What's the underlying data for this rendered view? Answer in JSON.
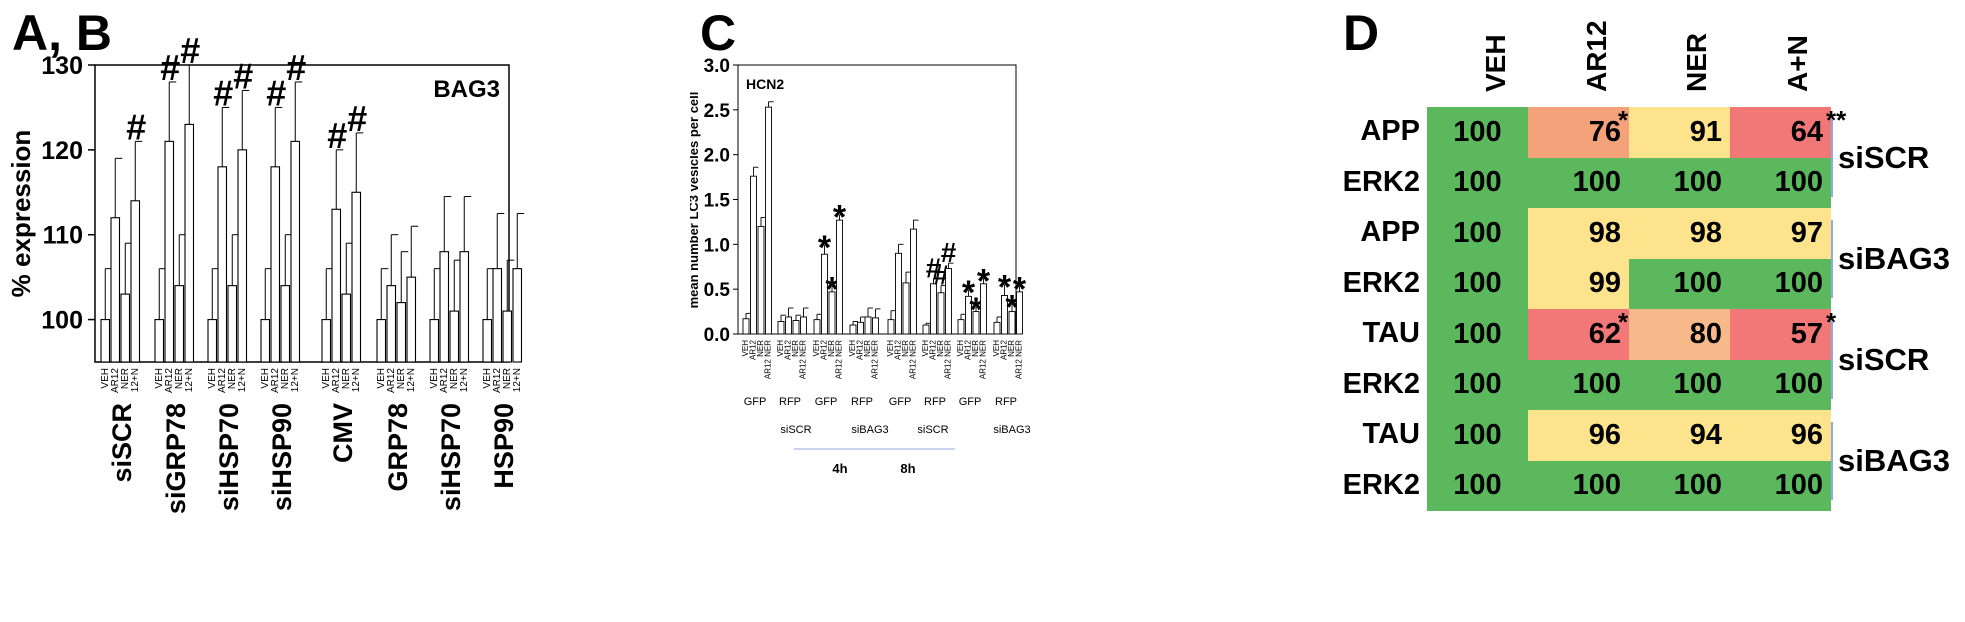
{
  "labels": {
    "panel_ab": "A, B",
    "panel_c": "C",
    "panel_d": "D"
  },
  "chart_data": [
    {
      "id": "A_B",
      "type": "bar",
      "annotation": "BAG3",
      "ylabel": "% expression",
      "ylim": [
        95,
        130
      ],
      "yticks": [
        100,
        110,
        120,
        130
      ],
      "bar_labels": [
        "VEH",
        "AR12",
        "NER",
        "12+N"
      ],
      "groups": [
        {
          "name": "siSCR",
          "values": [
            100,
            112,
            103,
            114
          ],
          "errors": [
            6,
            7,
            6,
            7
          ],
          "marks": [
            "",
            "",
            "",
            "#"
          ]
        },
        {
          "name": "siGRP78",
          "values": [
            100,
            121,
            104,
            123
          ],
          "errors": [
            6,
            7,
            6,
            7
          ],
          "marks": [
            "",
            "#",
            "",
            "#"
          ]
        },
        {
          "name": "siHSP70",
          "values": [
            100,
            118,
            104,
            120
          ],
          "errors": [
            6,
            7,
            6,
            7
          ],
          "marks": [
            "",
            "#",
            "",
            "#"
          ]
        },
        {
          "name": "siHSP90",
          "values": [
            100,
            118,
            104,
            121
          ],
          "errors": [
            6,
            7,
            6,
            7
          ],
          "marks": [
            "",
            "#",
            "",
            "#"
          ]
        },
        {
          "name": "CMV",
          "values": [
            100,
            113,
            103,
            115
          ],
          "errors": [
            6,
            7,
            6,
            7
          ],
          "marks": [
            "",
            "#",
            "",
            "#"
          ]
        },
        {
          "name": "GRP78",
          "values": [
            100,
            104,
            102,
            105
          ],
          "errors": [
            6,
            6,
            6,
            6
          ],
          "marks": [
            "",
            "",
            "",
            ""
          ]
        },
        {
          "name": "siHSP70",
          "values": [
            100,
            108,
            101,
            108
          ],
          "errors": [
            6,
            6.5,
            6,
            6.5
          ],
          "marks": [
            "",
            "",
            "",
            ""
          ]
        },
        {
          "name": "HSP90",
          "values": [
            100,
            106,
            101,
            106
          ],
          "errors": [
            6,
            6.5,
            6,
            6.5
          ],
          "marks": [
            "",
            "",
            "",
            ""
          ]
        }
      ]
    },
    {
      "id": "C",
      "type": "bar",
      "annotation": "HCN2",
      "ylabel": "mean number LC3 vesicles per cell",
      "ylim": [
        0,
        3.0
      ],
      "yticks": [
        "0.0",
        "0.5",
        "1.0",
        "1.5",
        "2.0",
        "2.5",
        "3.0"
      ],
      "bar_labels": [
        "VEH",
        "AR12",
        "NER",
        "AR12 NER"
      ],
      "groups": [
        {
          "name": "GFP",
          "values": [
            0.17,
            1.76,
            1.2,
            2.53
          ],
          "errors": [
            0.06,
            0.1,
            0.1,
            0.06
          ],
          "marks": [
            "",
            "",
            "",
            ""
          ]
        },
        {
          "name": "RFP",
          "values": [
            0.14,
            0.19,
            0.15,
            0.19
          ],
          "errors": [
            0.07,
            0.1,
            0.06,
            0.1
          ],
          "marks": [
            "",
            "",
            "",
            ""
          ]
        },
        {
          "name": "GFP",
          "values": [
            0.16,
            0.89,
            0.47,
            1.27
          ],
          "errors": [
            0.06,
            0.1,
            0.06,
            0.06
          ],
          "marks": [
            "",
            "*",
            "*",
            "*"
          ]
        },
        {
          "name": "RFP",
          "values": [
            0.1,
            0.13,
            0.19,
            0.18
          ],
          "errors": [
            0.04,
            0.06,
            0.1,
            0.1
          ],
          "marks": [
            "",
            "",
            "",
            ""
          ]
        },
        {
          "name": "GFP",
          "values": [
            0.16,
            0.9,
            0.57,
            1.17
          ],
          "errors": [
            0.1,
            0.1,
            0.12,
            0.1
          ],
          "marks": [
            "",
            "",
            "",
            ""
          ]
        },
        {
          "name": "RFP",
          "values": [
            0.1,
            0.56,
            0.46,
            0.73
          ],
          "errors": [
            0.02,
            0.06,
            0.08,
            0.06
          ],
          "marks": [
            "",
            "#",
            "#",
            "#"
          ]
        },
        {
          "name": "GFP",
          "values": [
            0.16,
            0.42,
            0.25,
            0.56
          ],
          "errors": [
            0.06,
            0.07,
            0.05,
            0.06
          ],
          "marks": [
            "",
            "*",
            "*",
            "*"
          ]
        },
        {
          "name": "RFP",
          "values": [
            0.13,
            0.43,
            0.25,
            0.47
          ],
          "errors": [
            0.06,
            0.12,
            0.08,
            0.06
          ],
          "marks": [
            "",
            "*",
            "*",
            "*"
          ]
        }
      ],
      "condition_labels": [
        "siSCR",
        "siBAG3",
        "siSCR",
        "siBAG3"
      ],
      "time_labels": [
        "4h",
        "8h"
      ]
    },
    {
      "id": "D",
      "type": "heatmap",
      "columns": [
        "VEH",
        "AR12",
        "NER",
        "A+N"
      ],
      "rows": [
        {
          "label": "APP",
          "values": [
            "100",
            "76",
            "91",
            "64"
          ],
          "colors": [
            "#5cb85c",
            "#f4a27a",
            "#fde38c",
            "#f27878"
          ],
          "marks": [
            "",
            "*",
            "",
            "**"
          ]
        },
        {
          "label": "ERK2",
          "values": [
            "100",
            "100",
            "100",
            "100"
          ],
          "colors": [
            "#5cb85c",
            "#5cb85c",
            "#5cb85c",
            "#5cb85c"
          ],
          "marks": [
            "",
            "",
            "",
            ""
          ]
        },
        {
          "label": "APP",
          "values": [
            "100",
            "98",
            "98",
            "97"
          ],
          "colors": [
            "#5cb85c",
            "#fde38c",
            "#fde38c",
            "#fde38c"
          ],
          "marks": [
            "",
            "",
            "",
            ""
          ]
        },
        {
          "label": "ERK2",
          "values": [
            "100",
            "99",
            "100",
            "100"
          ],
          "colors": [
            "#5cb85c",
            "#fde38c",
            "#5cb85c",
            "#5cb85c"
          ],
          "marks": [
            "",
            "",
            "",
            ""
          ]
        },
        {
          "label": "TAU",
          "values": [
            "100",
            "62",
            "80",
            "57"
          ],
          "colors": [
            "#5cb85c",
            "#f27878",
            "#f7b98a",
            "#f27878"
          ],
          "marks": [
            "",
            "*",
            "",
            "*"
          ]
        },
        {
          "label": "ERK2",
          "values": [
            "100",
            "100",
            "100",
            "100"
          ],
          "colors": [
            "#5cb85c",
            "#5cb85c",
            "#5cb85c",
            "#5cb85c"
          ],
          "marks": [
            "",
            "",
            "",
            ""
          ]
        },
        {
          "label": "TAU",
          "values": [
            "100",
            "96",
            "94",
            "96"
          ],
          "colors": [
            "#5cb85c",
            "#fde38c",
            "#fde38c",
            "#fde38c"
          ],
          "marks": [
            "",
            "",
            "",
            ""
          ]
        },
        {
          "label": "ERK2",
          "values": [
            "100",
            "100",
            "100",
            "100"
          ],
          "colors": [
            "#5cb85c",
            "#5cb85c",
            "#5cb85c",
            "#5cb85c"
          ],
          "marks": [
            "",
            "",
            "",
            ""
          ]
        }
      ],
      "groups": [
        "siSCR",
        "siBAG3",
        "siSCR",
        "siBAG3"
      ]
    }
  ]
}
